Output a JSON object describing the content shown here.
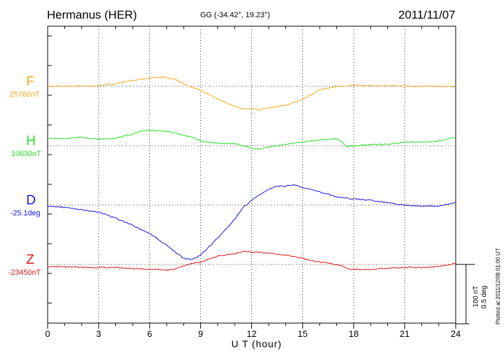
{
  "header": {
    "station": "Hermanus (HER)",
    "coords": "GG (-34.42°,  19.23°)",
    "date": "2011/11/07"
  },
  "scale": {
    "nt": "100 nT",
    "deg": "0.5 deg"
  },
  "plotted_note": "Plotted at 2011/12/08 01:00 UT",
  "chart_data": {
    "type": "line",
    "xlabel": "U T (hour)",
    "xlim": [
      0,
      24
    ],
    "xticks": [
      "0",
      "3",
      "6",
      "9",
      "12",
      "15",
      "18",
      "21",
      "24"
    ],
    "grid": true,
    "series": [
      {
        "name": "F",
        "baseline_label": "25760nT",
        "color": "#f2a818",
        "unit": "nT",
        "x": [
          0,
          1,
          2,
          3,
          4,
          5,
          6,
          6.8,
          7.5,
          8,
          8.5,
          9,
          9.5,
          10,
          10.5,
          11,
          11.5,
          12,
          12.5,
          13,
          14,
          15,
          16,
          17,
          17.5,
          18,
          19,
          20,
          21,
          22,
          23,
          24
        ],
        "values": [
          0,
          0,
          0,
          1,
          4,
          10,
          14,
          16,
          12,
          4,
          -2,
          -6,
          -14,
          -22,
          -28,
          -34,
          -38,
          -38,
          -40,
          -36,
          -32,
          -22,
          -6,
          0,
          0,
          2,
          1,
          1,
          0,
          0,
          0,
          -1
        ]
      },
      {
        "name": "H",
        "baseline_label": "10630nT",
        "color": "#22dd22",
        "unit": "nT",
        "x": [
          0,
          1,
          2,
          3,
          4,
          5,
          5.5,
          6,
          7,
          8,
          8.5,
          9,
          10,
          11,
          11.5,
          12,
          12.5,
          13,
          14,
          15,
          16,
          17,
          17.3,
          17.6,
          18,
          19,
          20,
          21,
          22,
          23,
          24
        ],
        "values": [
          12,
          12,
          14,
          11,
          12,
          20,
          24,
          26,
          24,
          18,
          14,
          8,
          4,
          4,
          0,
          -4,
          -6,
          -2,
          2,
          6,
          10,
          12,
          6,
          -2,
          0,
          2,
          2,
          6,
          6,
          8,
          14
        ]
      },
      {
        "name": "D",
        "baseline_label": "-25.1deg",
        "color": "#1010dd",
        "unit": "deg",
        "x": [
          0,
          1,
          2,
          3,
          4,
          5,
          6,
          7,
          8,
          8.5,
          9,
          10,
          11,
          11.5,
          12,
          12.5,
          13,
          13.5,
          14,
          14.5,
          15,
          16,
          17,
          18,
          19,
          20,
          21,
          22,
          23,
          24
        ],
        "values": [
          -0.01,
          -0.02,
          -0.04,
          -0.06,
          -0.11,
          -0.17,
          -0.24,
          -0.34,
          -0.45,
          -0.46,
          -0.42,
          -0.28,
          -0.12,
          -0.02,
          0.04,
          0.09,
          0.13,
          0.16,
          0.16,
          0.17,
          0.15,
          0.11,
          0.07,
          0.05,
          0.04,
          0.02,
          0.0,
          -0.01,
          -0.01,
          0.02
        ]
      },
      {
        "name": "Z",
        "baseline_label": "-23450nT",
        "color": "#dd1111",
        "unit": "nT",
        "x": [
          0,
          1,
          2,
          3,
          4,
          5,
          6,
          7,
          7.5,
          8,
          8.5,
          9,
          10,
          11,
          11.5,
          12,
          13,
          14,
          15,
          16,
          17,
          17.4,
          17.8,
          18,
          19,
          20,
          21,
          22,
          23,
          24
        ],
        "values": [
          -4,
          -4,
          -5,
          -5,
          -5,
          -7,
          -8,
          -10,
          -8,
          -2,
          2,
          4,
          14,
          18,
          22,
          21,
          19,
          16,
          10,
          4,
          0,
          -4,
          -8,
          -8,
          -9,
          -6,
          -5,
          -5,
          -4,
          2
        ]
      }
    ]
  }
}
